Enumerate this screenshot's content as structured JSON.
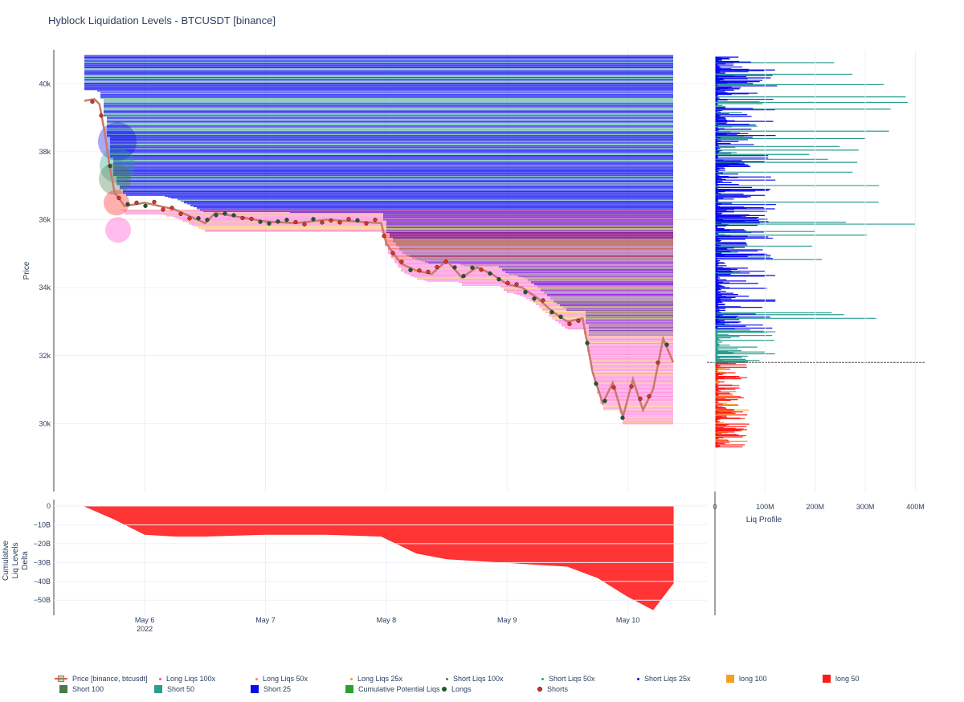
{
  "title": "Hyblock Liquidation Levels - BTCUSDT [binance]",
  "colors": {
    "short25": "#0a0af0",
    "short50": "#2a9d8f",
    "short100": "#4a7a4a",
    "long50": "#ff1a1a",
    "long100": "#f4a020",
    "longPink": "#ff40c8",
    "delta": "#ff2a2a",
    "price": "#c87a6a",
    "longsDot": "#1d5c2a",
    "shortsDot": "#e03020"
  },
  "chart_data": [
    {
      "type": "line",
      "title": "Hyblock Liquidation Levels - BTCUSDT [binance]",
      "ylabel": "Price",
      "ylim": [
        28000,
        41000
      ],
      "yticks": [
        30000,
        32000,
        34000,
        36000,
        38000,
        40000
      ],
      "ytick_labels": [
        "30k",
        "32k",
        "34k",
        "36k",
        "38k",
        "40k"
      ],
      "x_start": "2022-05-05 12:00",
      "x_end": "2022-05-10 09:00",
      "xticks": [
        "May 6\n2022",
        "May 7",
        "May 8",
        "May 9",
        "May 10"
      ],
      "series": [
        {
          "name": "Price [binance, btcusdt]",
          "x": [
            "2022-05-05 12:00",
            "2022-05-05 14:00",
            "2022-05-05 15:00",
            "2022-05-05 16:00",
            "2022-05-05 17:00",
            "2022-05-05 18:00",
            "2022-05-05 20:00",
            "2022-05-06 00:00",
            "2022-05-06 06:00",
            "2022-05-06 12:00",
            "2022-05-06 14:00",
            "2022-05-06 18:00",
            "2022-05-07 00:00",
            "2022-05-07 06:00",
            "2022-05-07 12:00",
            "2022-05-07 18:00",
            "2022-05-07 23:00",
            "2022-05-08 00:00",
            "2022-05-08 03:00",
            "2022-05-08 06:00",
            "2022-05-08 09:00",
            "2022-05-08 12:00",
            "2022-05-08 15:00",
            "2022-05-08 18:00",
            "2022-05-08 21:00",
            "2022-05-09 00:00",
            "2022-05-09 03:00",
            "2022-05-09 06:00",
            "2022-05-09 09:00",
            "2022-05-09 12:00",
            "2022-05-09 15:00",
            "2022-05-09 17:00",
            "2022-05-09 19:00",
            "2022-05-09 21:00",
            "2022-05-09 23:00",
            "2022-05-10 01:00",
            "2022-05-10 03:00",
            "2022-05-10 05:00",
            "2022-05-10 07:00",
            "2022-05-10 09:00"
          ],
          "values": [
            39500,
            39550,
            39400,
            38600,
            37600,
            36800,
            36400,
            36500,
            36300,
            35900,
            36200,
            36100,
            35950,
            35900,
            36000,
            35950,
            35900,
            35300,
            34700,
            34500,
            34400,
            34800,
            34300,
            34600,
            34400,
            34100,
            34000,
            33700,
            33300,
            33000,
            33100,
            31500,
            30600,
            31200,
            30200,
            31300,
            30400,
            31000,
            32500,
            31800
          ]
        }
      ],
      "bar_bands": [
        {
          "name": "Short 25",
          "from": 33500,
          "to": 40800
        },
        {
          "name": "Short 50",
          "from": 32800,
          "to": 39500
        },
        {
          "name": "Long 50",
          "from": 33800,
          "to": 35700
        },
        {
          "name": "Long 100",
          "from": 30000,
          "to": 35400
        }
      ],
      "legend": [
        "Price [binance, btcusdt]",
        "Long Liqs 100x",
        "Long Liqs 50x",
        "Long Liqs 25x",
        "Short Liqs 100x",
        "Short Liqs 50x",
        "Short Liqs 25x",
        "long 100",
        "long 50",
        "Short 100",
        "Short 50",
        "Short 25",
        "Cumulative Potential Liqs",
        "Longs",
        "Shorts"
      ]
    },
    {
      "type": "area",
      "ylabel": "Cumulative\nLiq Levels\nDelta",
      "ylim": [
        -58,
        0
      ],
      "yticks": [
        0,
        -10,
        -20,
        -30,
        -40,
        -50
      ],
      "ytick_labels": [
        "0",
        "−10B",
        "−20B",
        "−30B",
        "−40B",
        "−50B"
      ],
      "series": [
        {
          "name": "Cumulative Liq Levels Delta",
          "x": [
            "2022-05-05 12:00",
            "2022-05-05 18:00",
            "2022-05-06 00:00",
            "2022-05-06 06:00",
            "2022-05-06 12:00",
            "2022-05-07 00:00",
            "2022-05-07 12:00",
            "2022-05-07 23:00",
            "2022-05-08 06:00",
            "2022-05-08 12:00",
            "2022-05-08 18:00",
            "2022-05-09 00:00",
            "2022-05-09 06:00",
            "2022-05-09 12:00",
            "2022-05-09 18:00",
            "2022-05-10 00:00",
            "2022-05-10 05:00",
            "2022-05-10 09:00"
          ],
          "values": [
            0,
            -7,
            -15,
            -16,
            -16,
            -15,
            -15,
            -16,
            -25,
            -28,
            -29,
            -30,
            -31,
            -32,
            -38,
            -48,
            -55,
            -41
          ]
        }
      ]
    },
    {
      "type": "bar",
      "xlabel": "Liq Profile",
      "xlim": [
        0,
        420
      ],
      "xticks": [
        0,
        100,
        200,
        300,
        400
      ],
      "xtick_labels": [
        "0",
        "100M",
        "200M",
        "300M",
        "400M"
      ],
      "current_price": 31800
    }
  ]
}
